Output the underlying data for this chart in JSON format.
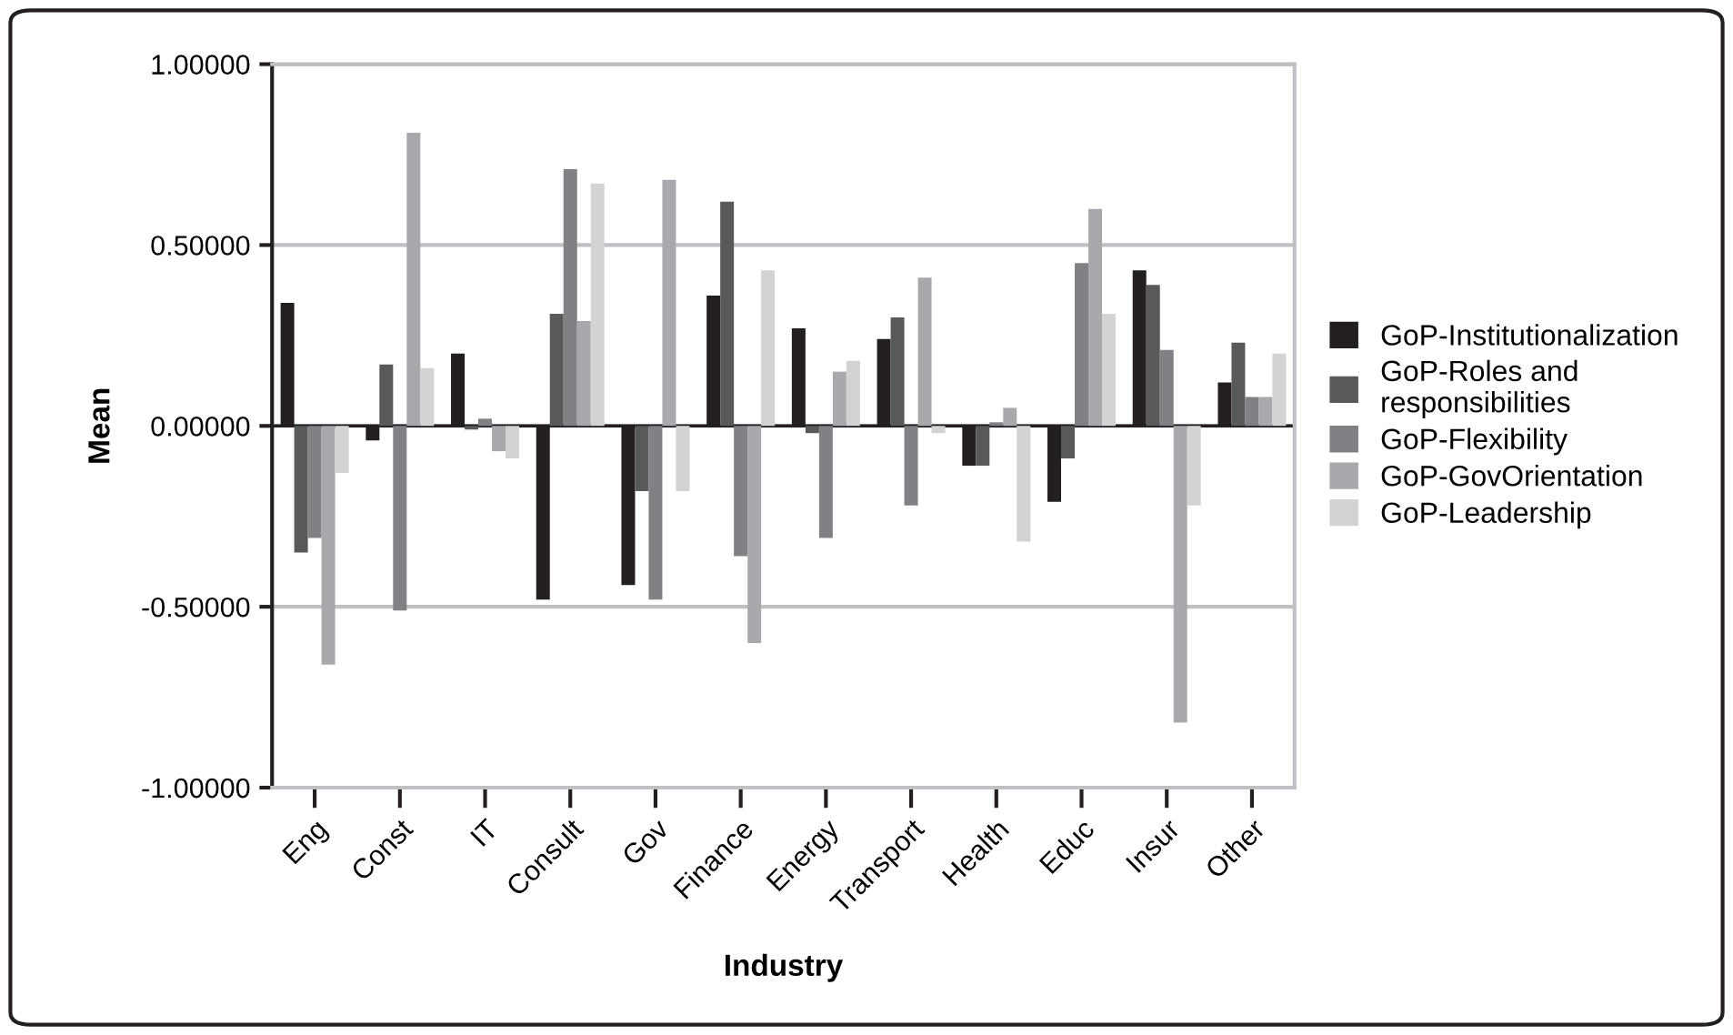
{
  "chart_data": {
    "type": "bar",
    "xlabel": "Industry",
    "ylabel": "Mean",
    "categories": [
      "Eng",
      "Const",
      "IT",
      "Consult",
      "Gov",
      "Finance",
      "Energy",
      "Transport",
      "Health",
      "Educ",
      "Insur",
      "Other"
    ],
    "series": [
      {
        "name": "GoP-Institutionalization",
        "color": "#231f20",
        "values": [
          0.34,
          -0.04,
          0.2,
          -0.48,
          -0.44,
          0.36,
          0.27,
          0.24,
          -0.11,
          -0.21,
          0.43,
          0.12
        ]
      },
      {
        "name": "GoP-Roles and responsibilities",
        "color": "#58595b",
        "values": [
          -0.35,
          0.17,
          -0.01,
          0.31,
          -0.18,
          0.62,
          -0.02,
          0.3,
          -0.11,
          -0.09,
          0.39,
          0.23
        ]
      },
      {
        "name": "GoP-Flexibility",
        "color": "#808184",
        "values": [
          -0.31,
          -0.51,
          0.02,
          0.71,
          -0.48,
          -0.36,
          -0.31,
          -0.22,
          0.01,
          0.45,
          0.21,
          0.08
        ]
      },
      {
        "name": "GoP-GovOrientation",
        "color": "#a7a9ac",
        "values": [
          -0.66,
          0.81,
          -0.07,
          0.29,
          0.68,
          -0.6,
          0.15,
          0.41,
          0.05,
          0.6,
          -0.82,
          0.08
        ]
      },
      {
        "name": "GoP-Leadership",
        "color": "#d1d3d4",
        "values": [
          -0.13,
          0.16,
          -0.09,
          0.67,
          -0.18,
          0.43,
          0.18,
          -0.02,
          -0.32,
          0.31,
          -0.22,
          0.2
        ]
      }
    ],
    "ylim": [
      -1,
      1
    ],
    "yticks": [
      {
        "value": -1,
        "label": "-1.00000"
      },
      {
        "value": -0.5,
        "label": "-0.50000"
      },
      {
        "value": 0,
        "label": "0.00000"
      },
      {
        "value": 0.5,
        "label": "0.50000"
      },
      {
        "value": 1,
        "label": "1.00000"
      }
    ],
    "grid": "y",
    "legend": "right"
  }
}
